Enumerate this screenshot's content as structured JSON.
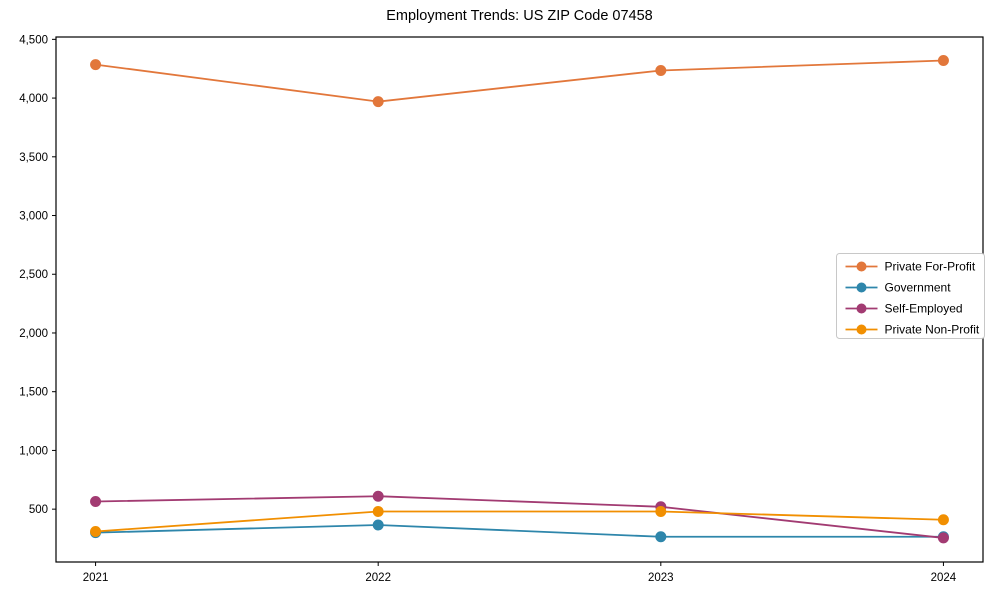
{
  "title": "Employment Trends: US ZIP Code 07458",
  "chart_data": {
    "type": "line",
    "title": "Employment Trends: US ZIP Code 07458",
    "x": [
      2021,
      2022,
      2023,
      2024
    ],
    "x_tick_labels": [
      "2021",
      "2022",
      "2023",
      "2024"
    ],
    "series": [
      {
        "name": "Private For-Profit",
        "color": "#E2773B",
        "values": [
          4285,
          3970,
          4235,
          4320
        ]
      },
      {
        "name": "Government",
        "color": "#2E86AB",
        "values": [
          300,
          365,
          265,
          265
        ]
      },
      {
        "name": "Self-Employed",
        "color": "#A23B72",
        "values": [
          565,
          610,
          520,
          255
        ]
      },
      {
        "name": "Private Non-Profit",
        "color": "#F18F01",
        "values": [
          310,
          480,
          480,
          410
        ]
      }
    ],
    "yticks": [
      500,
      1000,
      1500,
      2000,
      2500,
      3000,
      3500,
      4000,
      4500
    ],
    "ytick_labels": [
      "500",
      "1,000",
      "1,500",
      "2,000",
      "2,500",
      "3,000",
      "3,500",
      "4,000",
      "4,500"
    ],
    "ylim": [
      50,
      4520
    ],
    "xlim": [
      2020.86,
      2024.14
    ],
    "xlabel": "",
    "ylabel": "",
    "grid": false,
    "legend_position": "center right",
    "marker": "circle",
    "spine_color": "#000000",
    "legend_border_color": "#c8c8c8",
    "background_color": "#ffffff"
  }
}
